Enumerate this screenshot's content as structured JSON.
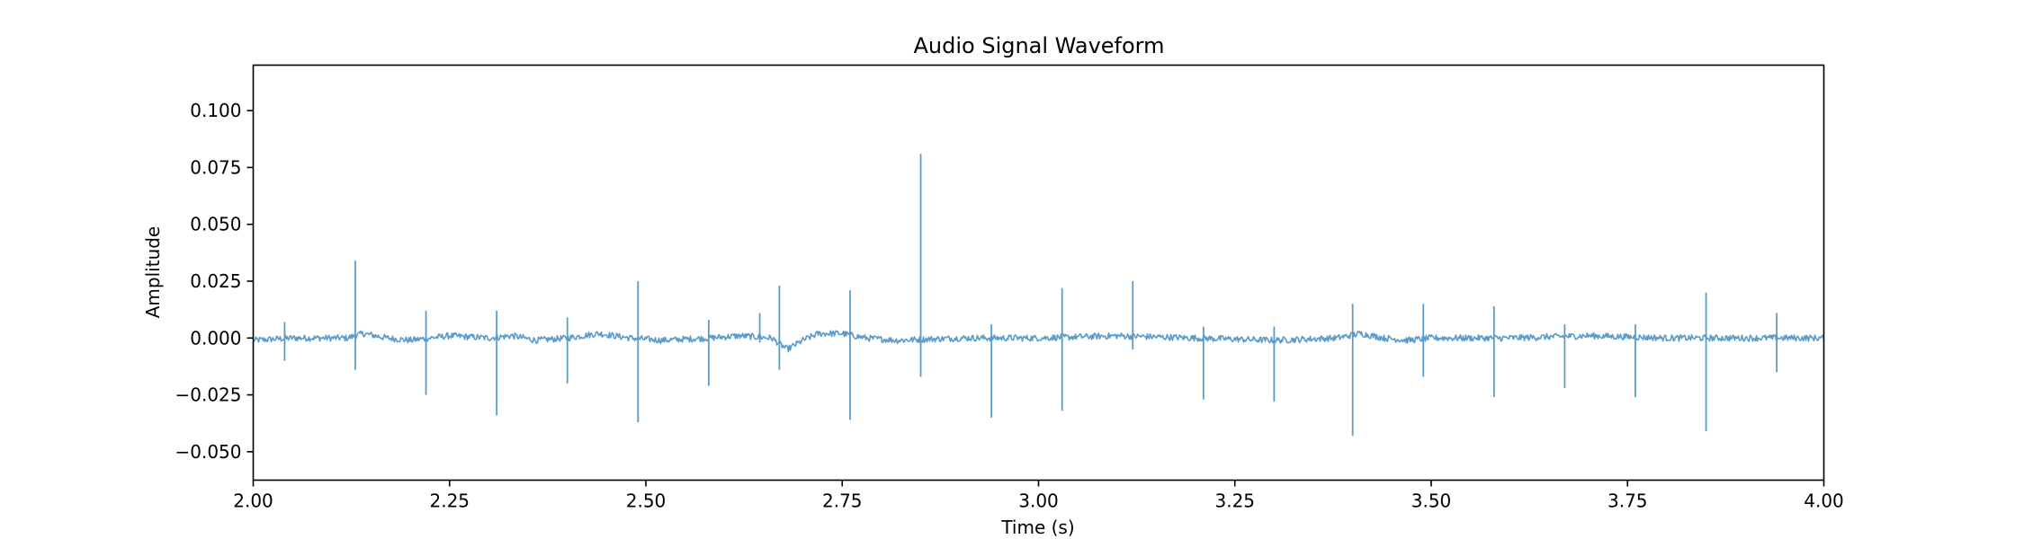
{
  "chart_data": {
    "type": "line",
    "title": "Audio Signal Waveform",
    "xlabel": "Time (s)",
    "ylabel": "Amplitude",
    "xlim": [
      2.0,
      4.0
    ],
    "ylim": [
      -0.0625,
      0.12
    ],
    "x_ticks": [
      {
        "value": 2.0,
        "label": "2.00"
      },
      {
        "value": 2.25,
        "label": "2.25"
      },
      {
        "value": 2.5,
        "label": "2.50"
      },
      {
        "value": 2.75,
        "label": "2.75"
      },
      {
        "value": 3.0,
        "label": "3.00"
      },
      {
        "value": 3.25,
        "label": "3.25"
      },
      {
        "value": 3.5,
        "label": "3.50"
      },
      {
        "value": 3.75,
        "label": "3.75"
      },
      {
        "value": 4.0,
        "label": "4.00"
      }
    ],
    "y_ticks": [
      {
        "value": 0.1,
        "label": "0.100"
      },
      {
        "value": 0.075,
        "label": "0.075"
      },
      {
        "value": 0.05,
        "label": "0.050"
      },
      {
        "value": 0.025,
        "label": "0.025"
      },
      {
        "value": 0.0,
        "label": "0.000"
      },
      {
        "value": -0.025,
        "label": "−0.025"
      },
      {
        "value": -0.05,
        "label": "−0.050"
      }
    ],
    "grid": false,
    "color": "#5b9bc9",
    "series": [
      {
        "baseline": [
          [
            2.0,
            -0.001
          ],
          [
            2.05,
            0.0
          ],
          [
            2.12,
            0.0
          ],
          [
            2.14,
            0.002
          ],
          [
            2.17,
            0.0
          ],
          [
            2.2,
            -0.001
          ],
          [
            2.25,
            0.001
          ],
          [
            2.3,
            0.0
          ],
          [
            2.33,
            0.001
          ],
          [
            2.36,
            -0.001
          ],
          [
            2.4,
            0.0
          ],
          [
            2.44,
            0.002
          ],
          [
            2.48,
            0.0
          ],
          [
            2.52,
            -0.001
          ],
          [
            2.58,
            0.0
          ],
          [
            2.62,
            0.001
          ],
          [
            2.66,
            0.0
          ],
          [
            2.68,
            -0.005
          ],
          [
            2.7,
            -0.001
          ],
          [
            2.72,
            0.002
          ],
          [
            2.75,
            0.002
          ],
          [
            2.78,
            0.0
          ],
          [
            2.82,
            -0.001
          ],
          [
            2.9,
            0.0
          ],
          [
            3.0,
            0.0
          ],
          [
            3.1,
            0.001
          ],
          [
            3.2,
            0.0
          ],
          [
            3.3,
            -0.001
          ],
          [
            3.38,
            0.0
          ],
          [
            3.41,
            0.002
          ],
          [
            3.44,
            0.0
          ],
          [
            3.47,
            -0.001
          ],
          [
            3.5,
            0.0
          ],
          [
            3.6,
            0.0
          ],
          [
            3.7,
            0.001
          ],
          [
            3.8,
            0.0
          ],
          [
            3.9,
            0.0
          ],
          [
            4.0,
            0.0
          ]
        ],
        "spikes": [
          {
            "x": 2.04,
            "max": 0.007,
            "min": -0.01
          },
          {
            "x": 2.13,
            "max": 0.034,
            "min": -0.014
          },
          {
            "x": 2.22,
            "max": 0.012,
            "min": -0.025
          },
          {
            "x": 2.31,
            "max": 0.012,
            "min": -0.034
          },
          {
            "x": 2.4,
            "max": 0.009,
            "min": -0.02
          },
          {
            "x": 2.49,
            "max": 0.025,
            "min": -0.037
          },
          {
            "x": 2.58,
            "max": 0.008,
            "min": -0.021
          },
          {
            "x": 2.645,
            "max": 0.011,
            "min": -0.002
          },
          {
            "x": 2.67,
            "max": 0.023,
            "min": -0.014
          },
          {
            "x": 2.76,
            "max": 0.021,
            "min": -0.036
          },
          {
            "x": 2.85,
            "max": 0.081,
            "min": -0.017
          },
          {
            "x": 2.94,
            "max": 0.006,
            "min": -0.035
          },
          {
            "x": 3.03,
            "max": 0.022,
            "min": -0.032
          },
          {
            "x": 3.12,
            "max": 0.025,
            "min": -0.005
          },
          {
            "x": 3.21,
            "max": 0.005,
            "min": -0.027
          },
          {
            "x": 3.3,
            "max": 0.005,
            "min": -0.028
          },
          {
            "x": 3.4,
            "max": 0.015,
            "min": -0.043
          },
          {
            "x": 3.49,
            "max": 0.015,
            "min": -0.017
          },
          {
            "x": 3.58,
            "max": 0.014,
            "min": -0.026
          },
          {
            "x": 3.67,
            "max": 0.006,
            "min": -0.022
          },
          {
            "x": 3.76,
            "max": 0.006,
            "min": -0.026
          },
          {
            "x": 3.85,
            "max": 0.02,
            "min": -0.041
          },
          {
            "x": 3.94,
            "max": 0.011,
            "min": -0.015
          }
        ]
      }
    ]
  }
}
